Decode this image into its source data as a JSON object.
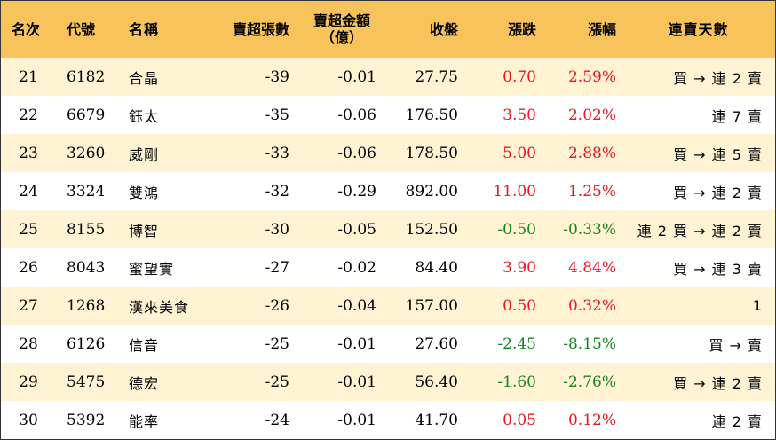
{
  "headers": {
    "rank": "名次",
    "code": "代號",
    "name": "名稱",
    "net_sell_lots": "賣超張數",
    "net_sell_amount_line1": "賣超金額",
    "net_sell_amount_line2": "（億）",
    "close": "收盤",
    "change": "漲跌",
    "change_pct": "漲幅",
    "streak": "連賣天數"
  },
  "colors": {
    "header_bg": "#f9c35c",
    "odd_row_bg": "#fff3d4",
    "up": "#e8161e",
    "down": "#13861b"
  },
  "rows": [
    {
      "rank": "21",
      "code": "6182",
      "name": "合晶",
      "lots": "-39",
      "amount": "-0.01",
      "close": "27.75",
      "change": "0.70",
      "pct": "2.59%",
      "dir": "up",
      "streak": "買 → 連 2 賣"
    },
    {
      "rank": "22",
      "code": "6679",
      "name": "鈺太",
      "lots": "-35",
      "amount": "-0.06",
      "close": "176.50",
      "change": "3.50",
      "pct": "2.02%",
      "dir": "up",
      "streak": "連 7 賣"
    },
    {
      "rank": "23",
      "code": "3260",
      "name": "威剛",
      "lots": "-33",
      "amount": "-0.06",
      "close": "178.50",
      "change": "5.00",
      "pct": "2.88%",
      "dir": "up",
      "streak": "買 → 連 5 賣"
    },
    {
      "rank": "24",
      "code": "3324",
      "name": "雙鴻",
      "lots": "-32",
      "amount": "-0.29",
      "close": "892.00",
      "change": "11.00",
      "pct": "1.25%",
      "dir": "up",
      "streak": "買 → 連 2 賣"
    },
    {
      "rank": "25",
      "code": "8155",
      "name": "博智",
      "lots": "-30",
      "amount": "-0.05",
      "close": "152.50",
      "change": "-0.50",
      "pct": "-0.33%",
      "dir": "down",
      "streak": "連 2 買 → 連 2 賣"
    },
    {
      "rank": "26",
      "code": "8043",
      "name": "蜜望實",
      "lots": "-27",
      "amount": "-0.02",
      "close": "84.40",
      "change": "3.90",
      "pct": "4.84%",
      "dir": "up",
      "streak": "買 → 連 3 賣"
    },
    {
      "rank": "27",
      "code": "1268",
      "name": "漢來美食",
      "lots": "-26",
      "amount": "-0.04",
      "close": "157.00",
      "change": "0.50",
      "pct": "0.32%",
      "dir": "up",
      "streak": "1"
    },
    {
      "rank": "28",
      "code": "6126",
      "name": "信音",
      "lots": "-25",
      "amount": "-0.01",
      "close": "27.60",
      "change": "-2.45",
      "pct": "-8.15%",
      "dir": "down",
      "streak": "買 → 賣"
    },
    {
      "rank": "29",
      "code": "5475",
      "name": "德宏",
      "lots": "-25",
      "amount": "-0.01",
      "close": "56.40",
      "change": "-1.60",
      "pct": "-2.76%",
      "dir": "down",
      "streak": "買 → 連 2 賣"
    },
    {
      "rank": "30",
      "code": "5392",
      "name": "能率",
      "lots": "-24",
      "amount": "-0.01",
      "close": "41.70",
      "change": "0.05",
      "pct": "0.12%",
      "dir": "up",
      "streak": "連 2 賣"
    }
  ]
}
